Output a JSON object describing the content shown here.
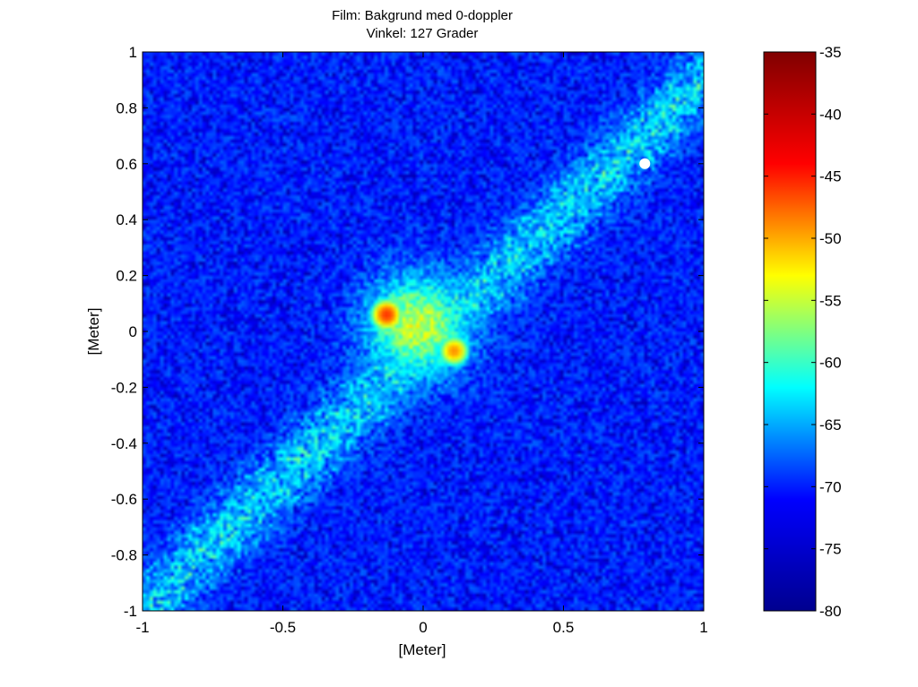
{
  "chart_data": {
    "type": "heatmap",
    "title": "Film: Bakgrund med 0-doppler",
    "subtitle": "Vinkel: 127 Grader",
    "xlabel": "[Meter]",
    "ylabel": "[Meter]",
    "xlim": [
      -1,
      1
    ],
    "ylim": [
      -1,
      1
    ],
    "x_ticks": [
      "-1",
      "-0.5",
      "0",
      "0.5",
      "1"
    ],
    "x_tick_values": [
      -1,
      -0.5,
      0,
      0.5,
      1
    ],
    "y_ticks": [
      "1",
      "0.8",
      "0.6",
      "0.4",
      "0.2",
      "0",
      "-0.2",
      "-0.4",
      "-0.6",
      "-0.8",
      "-1"
    ],
    "y_tick_values": [
      1,
      0.8,
      0.6,
      0.4,
      0.2,
      0,
      -0.2,
      -0.4,
      -0.6,
      -0.8,
      -1
    ],
    "colorbar": {
      "range": [
        -80,
        -35
      ],
      "ticks": [
        "-35",
        "-40",
        "-45",
        "-50",
        "-55",
        "-60",
        "-65",
        "-70",
        "-75",
        "-80"
      ],
      "tick_values": [
        -35,
        -40,
        -45,
        -50,
        -55,
        -60,
        -65,
        -70,
        -75,
        -80
      ],
      "colormap": "jet",
      "colors": [
        "#00008f",
        "#0000ff",
        "#00ffff",
        "#ffff00",
        "#ff0000",
        "#800000"
      ]
    },
    "features": {
      "background_level": -76,
      "diagonal_band": {
        "from": [
          -1,
          -1
        ],
        "to": [
          1,
          0.9
        ],
        "level": -64
      },
      "central_blob": {
        "center": [
          -0.02,
          0.02
        ],
        "radius": 0.17,
        "level": -54
      },
      "hot_spots": [
        {
          "x": -0.13,
          "y": 0.06,
          "value": -43
        },
        {
          "x": 0.11,
          "y": -0.07,
          "value": -47
        }
      ]
    },
    "marker": {
      "x": 0.79,
      "y": 0.6,
      "color": "#ffffff"
    },
    "grid": false
  }
}
